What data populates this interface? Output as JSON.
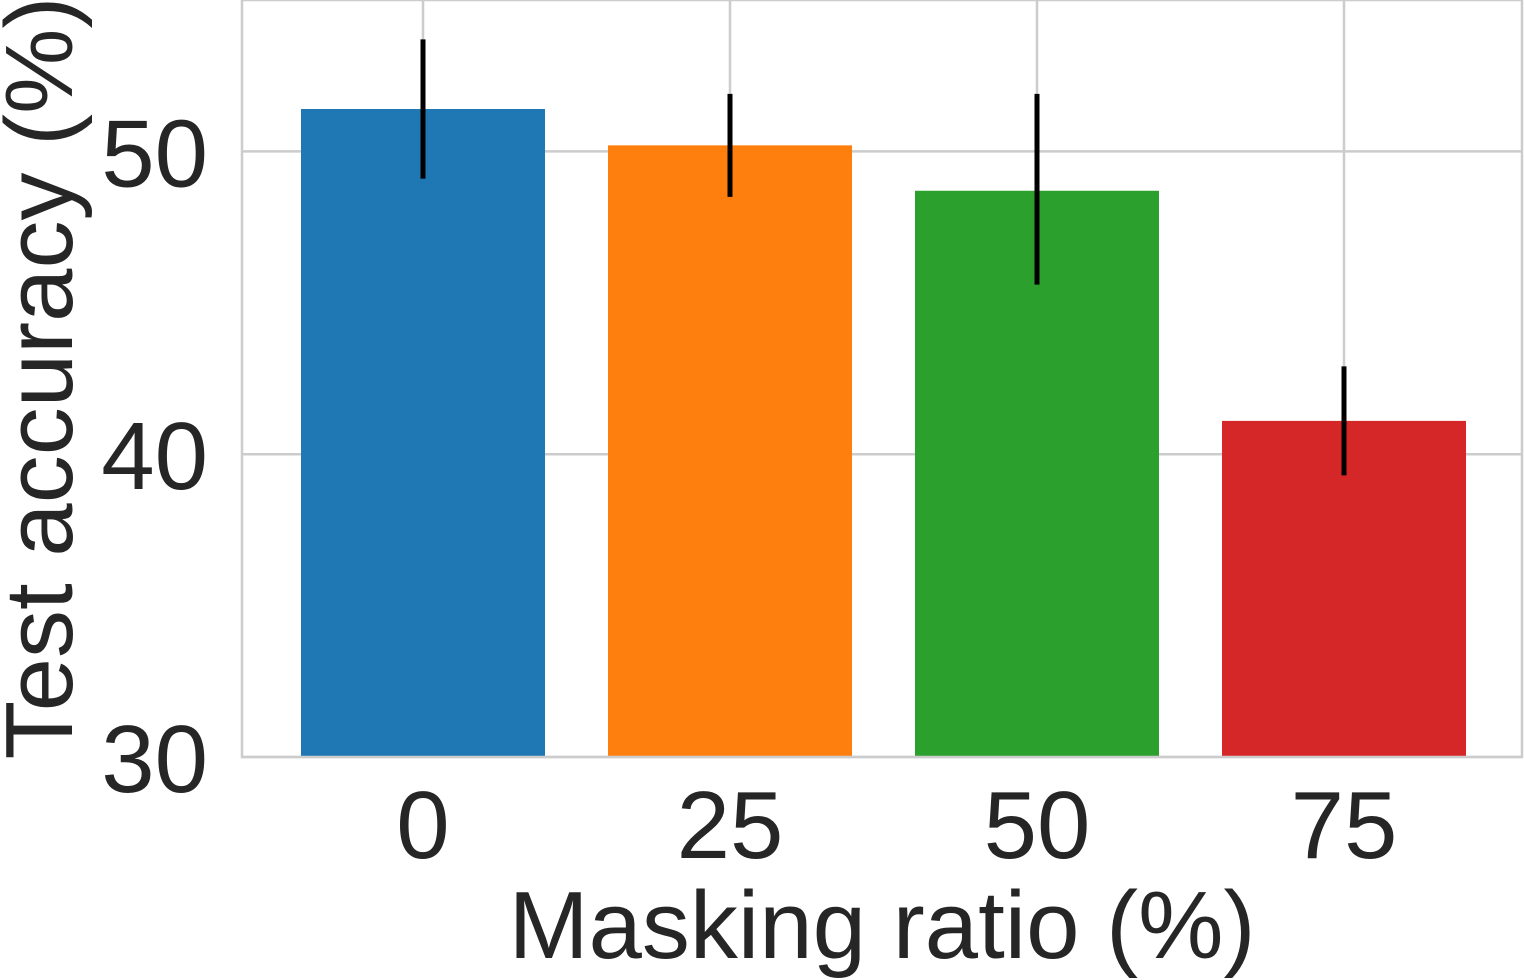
{
  "chart_data": {
    "type": "bar",
    "categories": [
      "0",
      "25",
      "50",
      "75"
    ],
    "values": [
      51.4,
      50.2,
      48.7,
      41.1
    ],
    "errors": [
      [
        49.1,
        53.7
      ],
      [
        48.5,
        51.9
      ],
      [
        45.6,
        51.9
      ],
      [
        39.3,
        42.9
      ]
    ],
    "colors": [
      "#1f77b4",
      "#ff7f0e",
      "#2ca02c",
      "#d62728"
    ],
    "xlabel": "Masking ratio (%)",
    "ylabel": "Test accuracy (%)",
    "ylim": [
      30,
      55
    ],
    "yticks": [
      30,
      40,
      50
    ],
    "ytick_labels": [
      "30",
      "40",
      "50"
    ],
    "grid": true
  }
}
